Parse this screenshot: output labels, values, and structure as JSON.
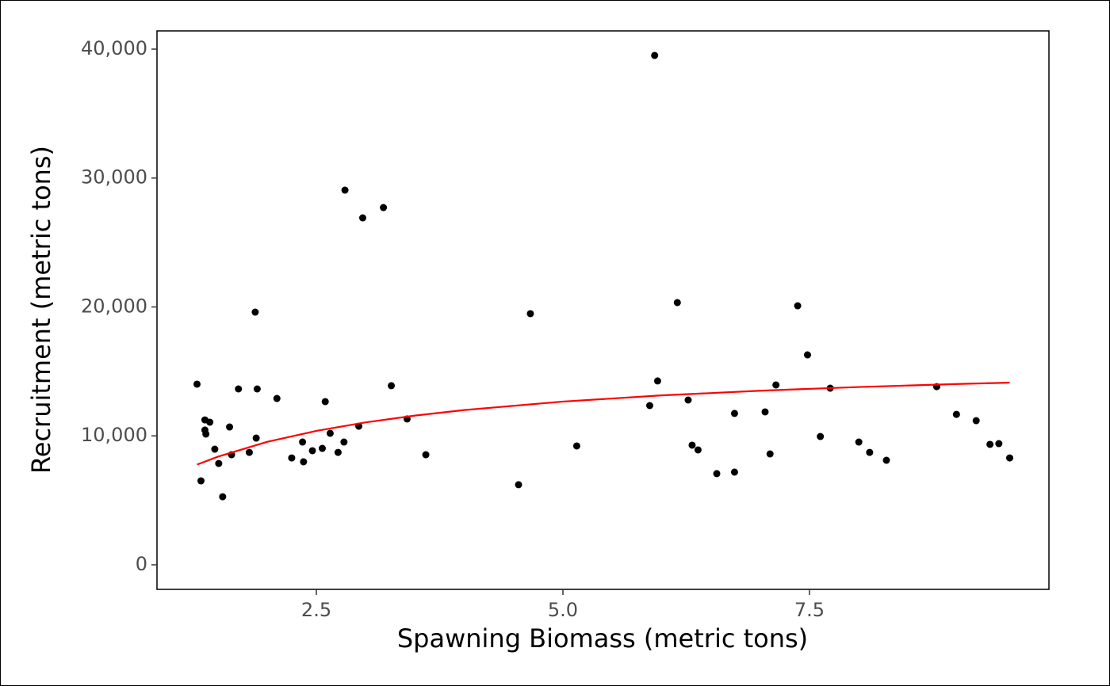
{
  "chart_data": {
    "type": "scatter",
    "x_label": "Spawning Biomass (metric tons)",
    "y_label": "Recruitment (metric tons)",
    "xlim": [
      0.884,
      9.928
    ],
    "ylim": [
      -1905,
      41413
    ],
    "xticks": [
      2.5,
      {
        "value": 5,
        "label": "5.0"
      },
      7.5
    ],
    "yticks": [
      0,
      {
        "value": 10000,
        "label": "10,000"
      },
      {
        "value": 20000,
        "label": "20,000"
      },
      {
        "value": 30000,
        "label": "30,000"
      },
      {
        "value": 40000,
        "label": "40,000"
      }
    ],
    "grid": false,
    "series": [
      {
        "type": "scatter",
        "color": "#000000",
        "x": [
          1.29,
          1.33,
          1.37,
          1.37,
          1.38,
          1.42,
          1.47,
          1.51,
          1.55,
          1.62,
          1.64,
          1.71,
          1.82,
          1.88,
          1.9,
          1.89,
          2.1,
          2.25,
          2.36,
          2.37,
          2.46,
          2.56,
          2.59,
          2.64,
          2.72,
          2.78,
          2.79,
          2.93,
          2.97,
          3.18,
          3.26,
          3.42,
          3.61,
          4.55,
          4.67,
          5.14,
          5.88,
          5.93,
          5.96,
          6.16,
          6.27,
          6.31,
          6.37,
          6.56,
          6.74,
          6.74,
          7.05,
          7.1,
          7.16,
          7.38,
          7.48,
          7.61,
          7.71,
          8.0,
          8.11,
          8.28,
          8.79,
          8.99,
          9.19,
          9.33,
          9.42,
          9.53
        ],
        "values": [
          14010,
          6510,
          11240,
          10450,
          10140,
          11060,
          8970,
          7860,
          5280,
          10690,
          8540,
          13640,
          8720,
          19600,
          13640,
          9830,
          12900,
          8290,
          9520,
          7990,
          8850,
          9030,
          12660,
          10200,
          8720,
          9520,
          29060,
          10750,
          26910,
          27710,
          13890,
          11310,
          8540,
          6210,
          19480,
          9220,
          12350,
          39510,
          14260,
          20340,
          12780,
          9280,
          8910,
          7070,
          11740,
          7190,
          11860,
          8600,
          13950,
          20090,
          16280,
          9950,
          13700,
          9520,
          8720,
          8110,
          13820,
          11670,
          11180,
          9340,
          9400,
          8290
        ]
      },
      {
        "type": "line",
        "color": "#ff0000",
        "x": [
          1.29,
          1.5,
          2.0,
          2.5,
          3.0,
          3.5,
          4.0,
          5.0,
          6.0,
          7.0,
          8.0,
          9.0,
          9.53
        ],
        "values": [
          7771,
          8382,
          9532,
          10388,
          11049,
          11575,
          12004,
          12660,
          13139,
          13504,
          13791,
          14024,
          14129
        ]
      }
    ]
  }
}
